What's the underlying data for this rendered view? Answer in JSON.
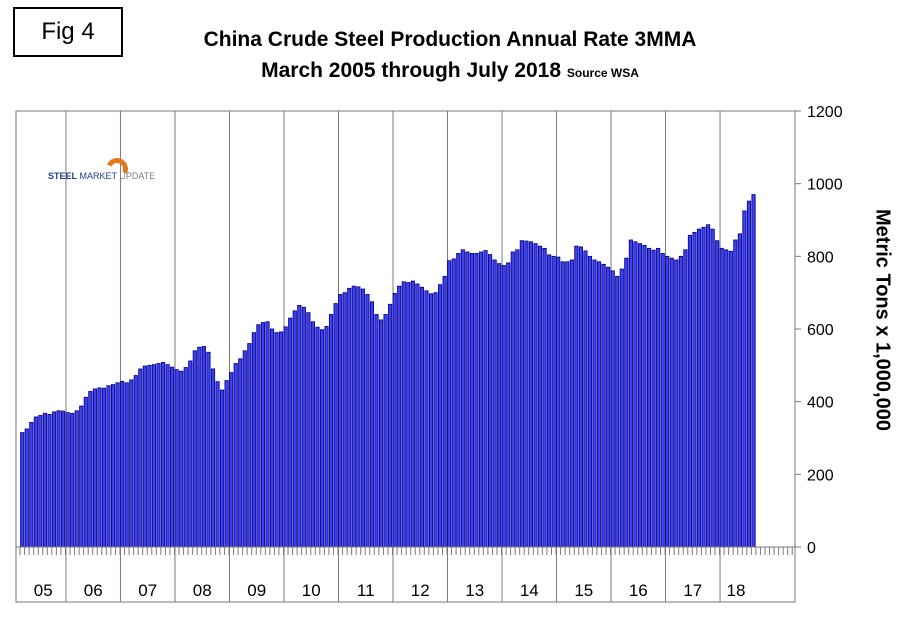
{
  "figure_label": "Fig 4",
  "source_note": "Source WSA",
  "logo": {
    "brand_bold": "STEEL",
    "brand_mid": "MARKET",
    "brand_light": "UPDATE"
  },
  "chart_data": {
    "type": "bar",
    "title": "China Crude Steel Production Annual Rate 3MMA",
    "subtitle": "March 2005 through July 2018",
    "ylabel": "Metric Tons x 1,000,000",
    "xlabel": "",
    "ylim": [
      0,
      1200
    ],
    "yticks": [
      0,
      200,
      400,
      600,
      800,
      1000,
      1200
    ],
    "y_axis_side": "right",
    "bar_color": "#3e3ef5",
    "year_labels": [
      "05",
      "06",
      "07",
      "08",
      "09",
      "10",
      "11",
      "12",
      "13",
      "14",
      "15",
      "16",
      "17",
      "18"
    ],
    "series": [
      {
        "name": "China crude steel production annual rate 3MMA",
        "start": "2005-03",
        "end": "2018-07",
        "values": [
          315,
          325,
          343,
          358,
          362,
          368,
          365,
          372,
          375,
          374,
          370,
          368,
          375,
          388,
          412,
          428,
          435,
          438,
          437,
          444,
          447,
          452,
          456,
          452,
          460,
          472,
          490,
          498,
          500,
          502,
          505,
          508,
          502,
          495,
          488,
          484,
          494,
          512,
          540,
          550,
          552,
          536,
          490,
          455,
          432,
          458,
          480,
          505,
          518,
          540,
          560,
          590,
          612,
          618,
          620,
          600,
          590,
          592,
          606,
          630,
          650,
          665,
          660,
          645,
          620,
          605,
          598,
          607,
          640,
          670,
          695,
          700,
          712,
          718,
          716,
          710,
          695,
          675,
          640,
          625,
          640,
          668,
          698,
          718,
          730,
          728,
          732,
          724,
          715,
          705,
          697,
          700,
          722,
          745,
          788,
          793,
          808,
          818,
          812,
          808,
          808,
          812,
          816,
          805,
          790,
          780,
          775,
          782,
          812,
          818,
          843,
          842,
          840,
          835,
          828,
          822,
          804,
          800,
          798,
          785,
          785,
          790,
          828,
          826,
          815,
          800,
          790,
          785,
          778,
          770,
          760,
          745,
          765,
          795,
          845,
          840,
          835,
          830,
          822,
          817,
          822,
          808,
          800,
          795,
          790,
          800,
          818,
          858,
          866,
          875,
          880,
          887,
          875,
          843,
          822,
          818,
          814,
          845,
          862,
          925,
          952,
          970
        ]
      }
    ]
  }
}
